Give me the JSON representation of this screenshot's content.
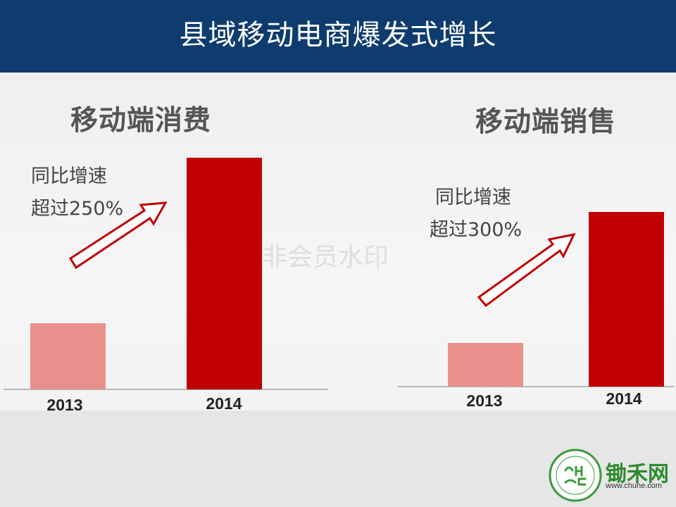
{
  "slide_title": "县域移动电商爆发式增长",
  "watermark": "非会员水印",
  "logo": {
    "name": "锄禾网",
    "url": "www.chuhe.com"
  },
  "colors": {
    "header": "#0f3c6e",
    "bar_2013": "#e8918c",
    "bar_2014": "#c00000",
    "arrow": "#c00000"
  },
  "chart_data": [
    {
      "type": "bar",
      "title": "移动端消费",
      "note_line1": "同比增速",
      "note_line2": "超过250%",
      "categories": [
        "2013",
        "2014"
      ],
      "values": [
        1,
        3.5
      ]
    },
    {
      "type": "bar",
      "title": "移动端销售",
      "note_line1": "同比增速",
      "note_line2": "超过300%",
      "categories": [
        "2013",
        "2014"
      ],
      "values": [
        1,
        4
      ]
    }
  ]
}
